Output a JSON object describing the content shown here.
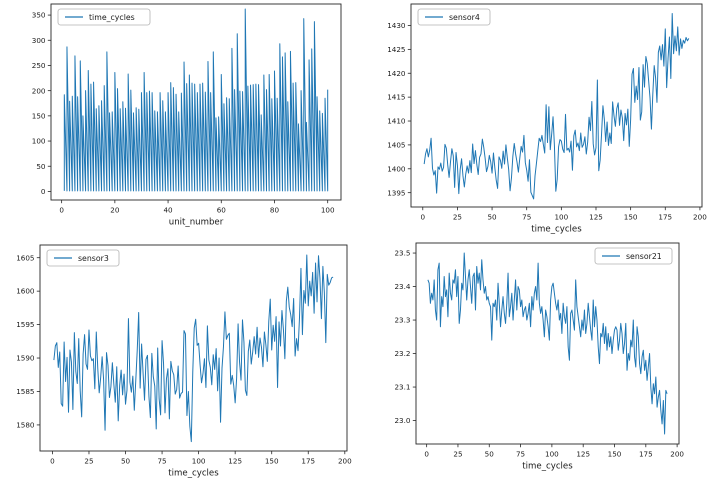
{
  "figure": {
    "background": "#ffffff",
    "line_color": "#1f77b4",
    "spine_color": "#262626",
    "legend_border_color": "#b3b3b3"
  },
  "chart_data": [
    {
      "id": "time-cycles-per-unit",
      "type": "spikes",
      "legend": "time_cycles",
      "legend_loc": "upper-left",
      "xlabel": "unit_number",
      "ylabel": "",
      "xlim": [
        -4,
        105
      ],
      "ylim": [
        -17,
        372
      ],
      "xticks": [
        0,
        20,
        40,
        60,
        80,
        100
      ],
      "xtick_labels": [
        "0",
        "20",
        "40",
        "60",
        "80",
        "100"
      ],
      "yticks": [
        0,
        50,
        100,
        150,
        200,
        250,
        300,
        350
      ],
      "ytick_labels": [
        "0",
        "50",
        "100",
        "150",
        "200",
        "250",
        "300",
        "350"
      ],
      "x_start": 1,
      "baseline": 1,
      "values": [
        192,
        287,
        179,
        189,
        269,
        188,
        259,
        150,
        200,
        240,
        213,
        217,
        164,
        170,
        180,
        210,
        277,
        156,
        158,
        236,
        204,
        164,
        178,
        165,
        233,
        201,
        156,
        166,
        163,
        196,
        236,
        196,
        199,
        196,
        160,
        158,
        196,
        180,
        158,
        196,
        216,
        206,
        193,
        158,
        195,
        257,
        214,
        231,
        215,
        213,
        196,
        213,
        215,
        197,
        258,
        196,
        277,
        146,
        148,
        232,
        174,
        186,
        184,
        284,
        202,
        313,
        199,
        198,
        362,
        209,
        211,
        212,
        213,
        212,
        152,
        231,
        202,
        232,
        184,
        239,
        185,
        293,
        267,
        275,
        178,
        278,
        215,
        216,
        134,
        200,
        343,
        137,
        261,
        283,
        337,
        188,
        160,
        155,
        185,
        202
      ]
    },
    {
      "id": "sensor4-trace",
      "type": "line",
      "legend": "sensor4",
      "legend_loc": "upper-left",
      "xlabel": "time_cycles",
      "ylabel": "",
      "xlim": [
        -8.5,
        201.5
      ],
      "ylim": [
        1392,
        1434.5
      ],
      "xticks": [
        0,
        25,
        50,
        75,
        100,
        125,
        150,
        175,
        200
      ],
      "xtick_labels": [
        "0",
        "25",
        "50",
        "75",
        "100",
        "125",
        "150",
        "175",
        "200"
      ],
      "yticks": [
        1395,
        1400,
        1405,
        1410,
        1415,
        1420,
        1425,
        1430
      ],
      "ytick_labels": [
        "1395",
        "1400",
        "1405",
        "1410",
        "1415",
        "1420",
        "1425",
        "1430"
      ],
      "x_start": 1,
      "values": [
        1401.0,
        1403.1,
        1404.2,
        1402.5,
        1403.9,
        1406.4,
        1400.1,
        1398.7,
        1399.6,
        1394.9,
        1400.4,
        1399.9,
        1401.2,
        1399.5,
        1400.3,
        1405.1,
        1404.3,
        1400.8,
        1398.2,
        1401.4,
        1404.2,
        1402.7,
        1396.1,
        1403.4,
        1400.7,
        1394.8,
        1399.9,
        1402.1,
        1398.5,
        1396.2,
        1398.9,
        1400.6,
        1399.1,
        1401.7,
        1399.2,
        1405.2,
        1401.1,
        1403.8,
        1400.9,
        1398.8,
        1402.4,
        1403.1,
        1406.2,
        1404.5,
        1402.2,
        1399.4,
        1400.5,
        1402.8,
        1401.5,
        1399.1,
        1403.3,
        1400.2,
        1397.6,
        1395.9,
        1402.5,
        1401.8,
        1400.1,
        1403.7,
        1401.0,
        1405.0,
        1402.3,
        1399.8,
        1395.4,
        1398.1,
        1402.6,
        1405.3,
        1403.1,
        1401.4,
        1399.3,
        1402.2,
        1404.7,
        1403.5,
        1407.0,
        1401.3,
        1399.7,
        1397.4,
        1401.9,
        1395.1,
        1394.4,
        1393.7,
        1398.5,
        1401.1,
        1403.8,
        1406.4,
        1405.7,
        1407.0,
        1405.1,
        1403.3,
        1413.4,
        1405.5,
        1413.0,
        1404.0,
        1407.2,
        1410.9,
        1404.8,
        1395.3,
        1397.8,
        1404.6,
        1406.1,
        1405.8,
        1404.1,
        1403.4,
        1411.4,
        1403.9,
        1404.3,
        1403.5,
        1405.8,
        1399.7,
        1406.9,
        1408.1,
        1404.6,
        1405.4,
        1403.8,
        1407.5,
        1404.5,
        1405.1,
        1406.7,
        1403.1,
        1405.6,
        1410.8,
        1408.0,
        1414.1,
        1405.2,
        1402.9,
        1404.4,
        1418.6,
        1399.6,
        1401.8,
        1407.2,
        1413.2,
        1410.4,
        1405.7,
        1409.8,
        1404.9,
        1407.5,
        1405.3,
        1414.0,
        1411.1,
        1408.9,
        1412.6,
        1413.8,
        1409.1,
        1412.3,
        1410.7,
        1405.9,
        1411.6,
        1409.2,
        1412.5,
        1404.7,
        1410.3,
        1419.8,
        1421.0,
        1413.9,
        1417.3,
        1414.5,
        1421.2,
        1410.2,
        1411.9,
        1421.8,
        1417.1,
        1423.5,
        1422.0,
        1418.4,
        1414.8,
        1408.3,
        1415.6,
        1421.6,
        1419.1,
        1413.9,
        1424.4,
        1425.7,
        1422.8,
        1426.0,
        1421.5,
        1429.3,
        1417.0,
        1423.1,
        1427.6,
        1418.9,
        1432.5,
        1424.1,
        1427.8,
        1424.7,
        1429.7,
        1423.8,
        1427.2,
        1425.2,
        1426.9,
        1426.3,
        1427.5,
        1426.8,
        1427.3
      ]
    },
    {
      "id": "sensor3-trace",
      "type": "line",
      "legend": "sensor3",
      "legend_loc": "upper-left",
      "xlabel": "time_cycles",
      "ylabel": "",
      "xlim": [
        -8.5,
        201.5
      ],
      "ylim": [
        1576.1,
        1606.9
      ],
      "xticks": [
        0,
        25,
        50,
        75,
        100,
        125,
        150,
        175,
        200
      ],
      "xtick_labels": [
        "0",
        "25",
        "50",
        "75",
        "100",
        "125",
        "150",
        "175",
        "200"
      ],
      "yticks": [
        1580,
        1585,
        1590,
        1595,
        1600,
        1605
      ],
      "ytick_labels": [
        "1580",
        "1585",
        "1590",
        "1595",
        "1600",
        "1605"
      ],
      "x_start": 1,
      "values": [
        1589.7,
        1591.8,
        1592.3,
        1588.6,
        1590.9,
        1583.2,
        1582.8,
        1592.4,
        1586.5,
        1590.1,
        1581.9,
        1591.2,
        1589.4,
        1582.3,
        1593.8,
        1588.0,
        1586.2,
        1592.9,
        1585.1,
        1581.2,
        1590.6,
        1593.5,
        1589.1,
        1588.3,
        1594.2,
        1590.3,
        1589.6,
        1589.9,
        1585.4,
        1593.9,
        1588.5,
        1584.8,
        1587.1,
        1590.2,
        1586.8,
        1579.2,
        1590.8,
        1588.9,
        1584.1,
        1585.7,
        1589.3,
        1586.1,
        1583.4,
        1588.7,
        1580.6,
        1585.9,
        1588.2,
        1584.5,
        1587.6,
        1583.1,
        1585.2,
        1595.9,
        1586.4,
        1584.9,
        1587.3,
        1582.2,
        1586.6,
        1591.1,
        1596.8,
        1585.5,
        1592.1,
        1587.8,
        1583.7,
        1589.8,
        1590.4,
        1584.3,
        1581.1,
        1590.7,
        1587.2,
        1585.8,
        1579.4,
        1591.5,
        1583.9,
        1581.5,
        1592.6,
        1589.2,
        1581.8,
        1586.9,
        1588.4,
        1580.9,
        1589.5,
        1588.1,
        1587.5,
        1584.6,
        1585.3,
        1588.8,
        1584.0,
        1584.7,
        1584.9,
        1594.1,
        1593.6,
        1581.4,
        1585.0,
        1579.8,
        1577.5,
        1587.9,
        1594.5,
        1595.8,
        1591.9,
        1592.2,
        1589.0,
        1586.3,
        1587.7,
        1589.9,
        1585.6,
        1594.8,
        1589.7,
        1588.6,
        1586.0,
        1590.5,
        1588.3,
        1591.4,
        1585.1,
        1590.0,
        1580.4,
        1588.5,
        1591.7,
        1596.9,
        1592.8,
        1593.4,
        1593.7,
        1586.1,
        1587.4,
        1585.9,
        1583.3,
        1587.0,
        1595.1,
        1589.4,
        1586.7,
        1595.7,
        1592.4,
        1585.2,
        1584.4,
        1591.0,
        1592.7,
        1589.1,
        1590.9,
        1593.2,
        1590.6,
        1594.6,
        1590.1,
        1593.0,
        1591.6,
        1588.7,
        1593.9,
        1592.0,
        1589.5,
        1595.5,
        1598.8,
        1591.2,
        1594.9,
        1592.5,
        1596.2,
        1585.6,
        1595.4,
        1591.8,
        1597.1,
        1594.3,
        1589.9,
        1598.5,
        1600.6,
        1597.6,
        1596.5,
        1594.7,
        1598.9,
        1590.3,
        1592.9,
        1591.1,
        1596.0,
        1603.4,
        1593.5,
        1600.1,
        1598.2,
        1605.4,
        1597.8,
        1601.5,
        1599.3,
        1602.8,
        1596.7,
        1604.2,
        1598.4,
        1605.3,
        1601.9,
        1595.9,
        1603.7,
        1599.8,
        1592.3,
        1602.5,
        1600.9,
        1601.3,
        1602.0,
        1602.1
      ]
    },
    {
      "id": "sensor21-trace",
      "type": "line",
      "legend": "sensor21",
      "legend_loc": "upper-right",
      "xlabel": "time_cycles",
      "ylabel": "",
      "xlim": [
        -8.5,
        201.5
      ],
      "ylim": [
        22.93,
        23.53
      ],
      "xticks": [
        0,
        25,
        50,
        75,
        100,
        125,
        150,
        175,
        200
      ],
      "xtick_labels": [
        "0",
        "25",
        "50",
        "75",
        "100",
        "125",
        "150",
        "175",
        "200"
      ],
      "yticks": [
        23.0,
        23.1,
        23.2,
        23.3,
        23.4,
        23.5
      ],
      "ytick_labels": [
        "23.0",
        "23.1",
        "23.2",
        "23.3",
        "23.4",
        "23.5"
      ],
      "x_start": 1,
      "values": [
        23.42,
        23.41,
        23.35,
        23.38,
        23.36,
        23.42,
        23.33,
        23.3,
        23.45,
        23.47,
        23.28,
        23.37,
        23.34,
        23.43,
        23.37,
        23.39,
        23.31,
        23.44,
        23.38,
        23.36,
        23.42,
        23.41,
        23.45,
        23.37,
        23.43,
        23.29,
        23.33,
        23.41,
        23.39,
        23.5,
        23.43,
        23.36,
        23.42,
        23.45,
        23.4,
        23.35,
        23.43,
        23.44,
        23.33,
        23.46,
        23.41,
        23.44,
        23.39,
        23.48,
        23.42,
        23.38,
        23.4,
        23.36,
        23.37,
        23.35,
        23.34,
        23.24,
        23.35,
        23.34,
        23.36,
        23.3,
        23.41,
        23.35,
        23.28,
        23.33,
        23.37,
        23.32,
        23.29,
        23.35,
        23.44,
        23.31,
        23.34,
        23.38,
        23.3,
        23.36,
        23.42,
        23.33,
        23.4,
        23.39,
        23.34,
        23.36,
        23.31,
        23.33,
        23.34,
        23.3,
        23.32,
        23.35,
        23.28,
        23.37,
        23.33,
        23.38,
        23.4,
        23.36,
        23.47,
        23.35,
        23.32,
        23.34,
        23.3,
        23.25,
        23.33,
        23.31,
        23.28,
        23.24,
        23.36,
        23.4,
        23.41,
        23.38,
        23.35,
        23.33,
        23.36,
        23.3,
        23.32,
        23.26,
        23.35,
        23.31,
        23.29,
        23.34,
        23.22,
        23.18,
        23.32,
        23.33,
        23.3,
        23.27,
        23.42,
        23.34,
        23.31,
        23.28,
        23.25,
        23.3,
        23.27,
        23.33,
        23.26,
        23.29,
        23.35,
        23.31,
        23.27,
        23.24,
        23.36,
        23.28,
        23.34,
        23.3,
        23.22,
        23.17,
        23.26,
        23.25,
        23.29,
        23.23,
        23.28,
        23.21,
        23.26,
        23.22,
        23.25,
        23.2,
        23.24,
        23.27,
        23.28,
        23.27,
        23.21,
        23.24,
        23.29,
        23.26,
        23.2,
        23.23,
        23.29,
        23.15,
        23.2,
        23.18,
        23.24,
        23.22,
        23.3,
        23.19,
        23.16,
        23.28,
        23.25,
        23.17,
        23.14,
        23.19,
        23.21,
        23.15,
        23.18,
        23.12,
        23.16,
        23.2,
        23.1,
        23.05,
        23.11,
        23.08,
        23.13,
        23.04,
        23.07,
        23.09,
        23.03,
        22.99,
        23.06,
        22.96,
        23.09,
        23.08
      ]
    }
  ]
}
